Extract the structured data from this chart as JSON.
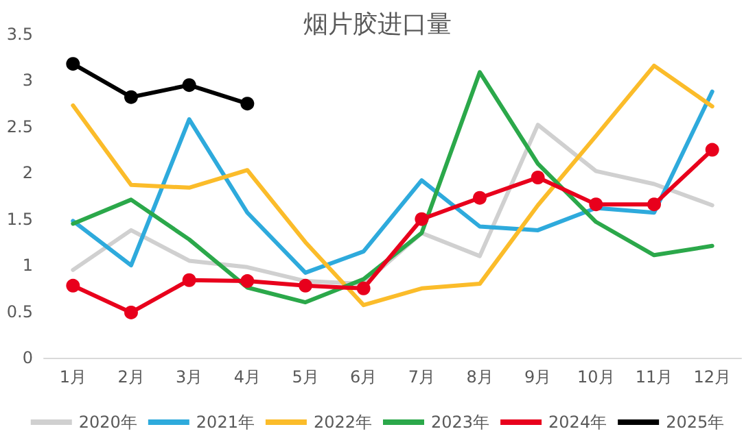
{
  "chart_data": {
    "type": "line",
    "title": "烟片胶进口量",
    "categories": [
      "1月",
      "2月",
      "3月",
      "4月",
      "5月",
      "6月",
      "7月",
      "8月",
      "9月",
      "10月",
      "11月",
      "12月"
    ],
    "series": [
      {
        "name": "2020年",
        "color": "#d0d0d0",
        "marker": "none",
        "values": [
          0.95,
          1.38,
          1.05,
          0.98,
          0.83,
          0.8,
          1.35,
          1.1,
          2.52,
          2.02,
          1.88,
          1.65
        ]
      },
      {
        "name": "2021年",
        "color": "#2eaadc",
        "marker": "none",
        "values": [
          1.48,
          1.0,
          2.58,
          1.57,
          0.92,
          1.15,
          1.92,
          1.42,
          1.38,
          1.62,
          1.57,
          2.88
        ]
      },
      {
        "name": "2022年",
        "color": "#fbbc2a",
        "marker": "none",
        "values": [
          2.73,
          1.87,
          1.84,
          2.03,
          1.25,
          0.57,
          0.75,
          0.8,
          1.65,
          2.4,
          3.16,
          2.72
        ]
      },
      {
        "name": "2023年",
        "color": "#2ba84a",
        "marker": "none",
        "values": [
          1.45,
          1.71,
          1.28,
          0.76,
          0.6,
          0.85,
          1.35,
          3.09,
          2.1,
          1.47,
          1.11,
          1.21
        ]
      },
      {
        "name": "2024年",
        "color": "#e8001c",
        "marker": "circle",
        "values": [
          0.78,
          0.49,
          0.84,
          0.83,
          0.78,
          0.75,
          1.5,
          1.73,
          1.95,
          1.66,
          1.66,
          2.25
        ]
      },
      {
        "name": "2025年",
        "color": "#000000",
        "marker": "circle",
        "values": [
          3.18,
          2.82,
          2.95,
          2.75,
          null,
          null,
          null,
          null,
          null,
          null,
          null,
          null
        ]
      }
    ],
    "ylim": [
      0,
      3.5
    ],
    "yticks": [
      0,
      0.5,
      1,
      1.5,
      2,
      2.5,
      3,
      3.5
    ],
    "grid": false,
    "legend": "bottom"
  }
}
